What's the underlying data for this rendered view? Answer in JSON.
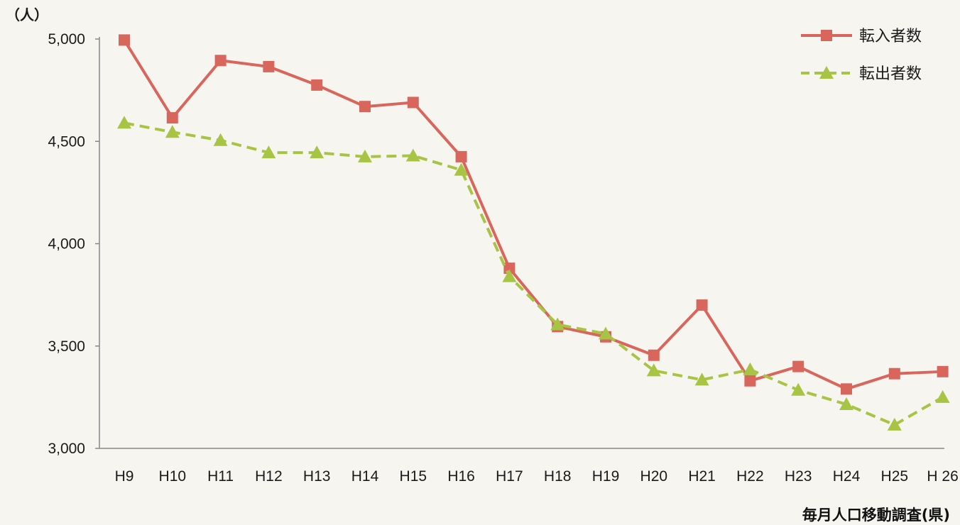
{
  "chart_data": {
    "type": "line",
    "unit_label": "（人）",
    "source": "毎月人口移動調査(県)",
    "categories": [
      "H9",
      "H10",
      "H11",
      "H12",
      "H13",
      "H14",
      "H15",
      "H16",
      "H17",
      "H18",
      "H19",
      "H20",
      "H21",
      "H22",
      "H23",
      "H24",
      "H25",
      "H 26"
    ],
    "yticks": [
      "5,000",
      "4,500",
      "4,000",
      "3,500",
      "3,000"
    ],
    "ylim": [
      3000,
      5000
    ],
    "legend_position": "top-right",
    "series": [
      {
        "name": "転入者数",
        "color": "#d9665c",
        "marker": "square",
        "dash": false,
        "values": [
          4995,
          4615,
          4895,
          4865,
          4775,
          4670,
          4690,
          4425,
          3880,
          3595,
          3545,
          3455,
          3700,
          3330,
          3400,
          3290,
          3365,
          3375
        ]
      },
      {
        "name": "転出者数",
        "color": "#a8c444",
        "marker": "triangle",
        "dash": true,
        "values": [
          4590,
          4545,
          4505,
          4445,
          4445,
          4425,
          4430,
          4360,
          3840,
          3605,
          3560,
          3380,
          3335,
          3385,
          3285,
          3215,
          3115,
          3250
        ]
      }
    ]
  }
}
